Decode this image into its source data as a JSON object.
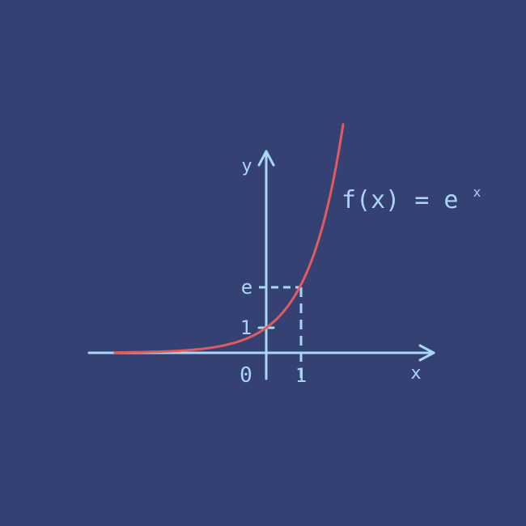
{
  "diagram": {
    "axis_x_label": "x",
    "axis_y_label": "y",
    "origin_label": "0",
    "x_tick_label": "1",
    "y_tick_one_label": "1",
    "y_tick_e_label": "e",
    "function_name": "f(x) = e",
    "function_exponent": "x",
    "colors": {
      "background": "#344172",
      "axes": "#a9d6f5",
      "curve": "#e05a5f"
    }
  }
}
